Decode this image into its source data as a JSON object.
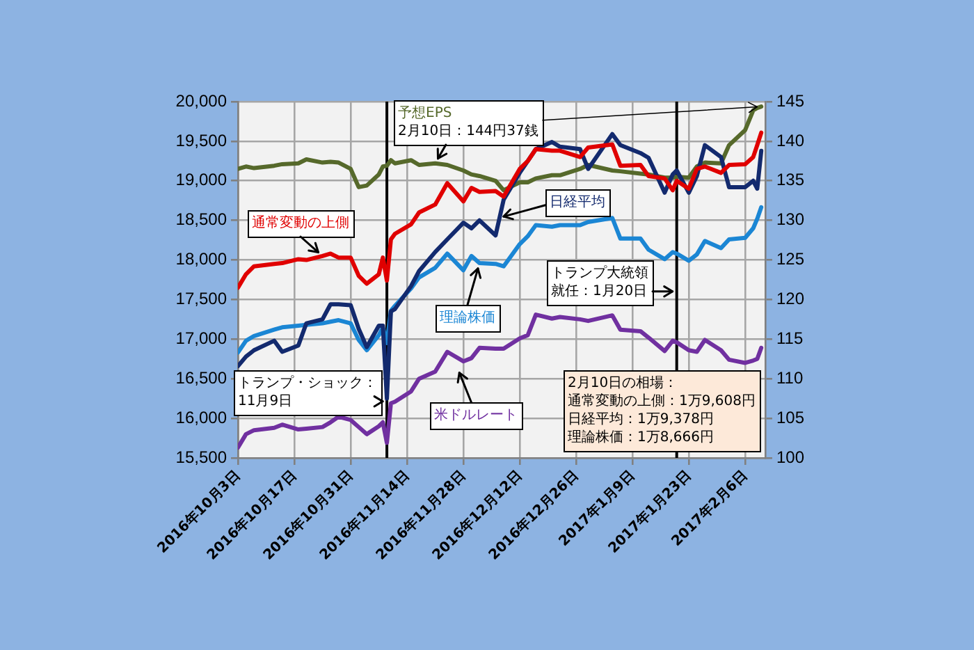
{
  "chart_data": {
    "type": "line",
    "x": [
      "2016-10-03",
      "2016-10-05",
      "2016-10-07",
      "2016-10-12",
      "2016-10-14",
      "2016-10-18",
      "2016-10-20",
      "2016-10-24",
      "2016-10-26",
      "2016-10-28",
      "2016-10-31",
      "2016-11-02",
      "2016-11-04",
      "2016-11-07",
      "2016-11-08",
      "2016-11-09",
      "2016-11-10",
      "2016-11-11",
      "2016-11-15",
      "2016-11-17",
      "2016-11-21",
      "2016-11-24",
      "2016-11-28",
      "2016-11-30",
      "2016-12-02",
      "2016-12-06",
      "2016-12-08",
      "2016-12-12",
      "2016-12-14",
      "2016-12-16",
      "2016-12-20",
      "2016-12-22",
      "2016-12-27",
      "2016-12-29",
      "2017-01-04",
      "2017-01-06",
      "2017-01-11",
      "2017-01-13",
      "2017-01-17",
      "2017-01-19",
      "2017-01-20",
      "2017-01-23",
      "2017-01-25",
      "2017-01-27",
      "2017-01-31",
      "2017-02-02",
      "2017-02-06",
      "2017-02-08",
      "2017-02-09",
      "2017-02-10"
    ],
    "series": [
      {
        "name": "通常変動の上側",
        "color": "#e00000",
        "values": [
          17650,
          17820,
          17920,
          17950,
          17960,
          18010,
          18000,
          18050,
          18080,
          18030,
          18030,
          17800,
          17700,
          17820,
          18030,
          17740,
          18260,
          18330,
          18450,
          18600,
          18700,
          18970,
          18740,
          18910,
          18860,
          18870,
          18800,
          19150,
          19250,
          19400,
          19380,
          19380,
          19300,
          19420,
          19460,
          19190,
          19200,
          19060,
          19030,
          18880,
          19000,
          18900,
          19150,
          19180,
          19100,
          19200,
          19210,
          19300,
          19450,
          19608
        ]
      },
      {
        "name": "日経平均",
        "color": "#132a6e",
        "values": [
          16660,
          16780,
          16860,
          16980,
          16840,
          16920,
          17200,
          17250,
          17440,
          17440,
          17430,
          17130,
          16900,
          17170,
          17170,
          16250,
          17350,
          17380,
          17670,
          17860,
          18100,
          18260,
          18470,
          18400,
          18500,
          18310,
          18760,
          19100,
          19250,
          19400,
          19490,
          19430,
          19400,
          19150,
          19590,
          19450,
          19350,
          19290,
          18850,
          19080,
          19130,
          18850,
          19060,
          19450,
          19300,
          18920,
          18920,
          19000,
          18900,
          19378
        ]
      },
      {
        "name": "理論株価",
        "color": "#1b86d4",
        "values": [
          16830,
          16980,
          17040,
          17120,
          17150,
          17170,
          17180,
          17200,
          17220,
          17240,
          17200,
          16990,
          16860,
          17050,
          17150,
          16950,
          17360,
          17420,
          17640,
          17780,
          17900,
          18080,
          17870,
          18050,
          17960,
          17950,
          17920,
          18200,
          18300,
          18440,
          18420,
          18440,
          18440,
          18480,
          18530,
          18270,
          18270,
          18130,
          18010,
          18100,
          18080,
          17990,
          18070,
          18240,
          18150,
          18260,
          18280,
          18400,
          18520,
          18666
        ]
      },
      {
        "name": "予想EPS",
        "color": "#56692b",
        "axis": "y2",
        "values": [
          136.5,
          136.8,
          136.6,
          136.9,
          137.1,
          137.2,
          137.7,
          137.3,
          137.4,
          137.3,
          136.5,
          134.2,
          134.4,
          135.8,
          136.8,
          136.9,
          137.6,
          137.2,
          137.6,
          137.0,
          137.2,
          137.0,
          136.3,
          135.8,
          135.6,
          135.0,
          133.8,
          134.8,
          134.8,
          135.3,
          135.7,
          135.7,
          136.5,
          137.0,
          136.3,
          136.2,
          135.9,
          135.8,
          135.4,
          135.4,
          135.5,
          135.4,
          136.8,
          137.3,
          137.2,
          139.5,
          141.4,
          143.9,
          144.2,
          144.37
        ]
      },
      {
        "name": "米ドルレート",
        "color": "#7030a0",
        "axis": "y2",
        "values": [
          101.3,
          103.0,
          103.5,
          103.8,
          104.2,
          103.6,
          103.7,
          103.9,
          104.5,
          105.2,
          104.8,
          103.9,
          103.0,
          104.0,
          104.5,
          101.9,
          106.9,
          107.1,
          108.4,
          110.0,
          110.9,
          113.4,
          112.2,
          112.6,
          113.9,
          113.8,
          113.8,
          115.1,
          115.5,
          118.1,
          117.6,
          117.8,
          117.5,
          117.3,
          118.0,
          116.2,
          116.0,
          115.2,
          113.5,
          114.8,
          114.6,
          113.6,
          113.4,
          114.9,
          113.6,
          112.4,
          112.0,
          112.3,
          112.5,
          113.9
        ]
      }
    ],
    "xlim": [
      "2016-10-03",
      "2017-02-11"
    ],
    "xticks": [
      {
        "value": "2016-10-03",
        "label": "2016年10月3日"
      },
      {
        "value": "2016-10-17",
        "label": "2016年10月17日"
      },
      {
        "value": "2016-10-31",
        "label": "2016年10月31日"
      },
      {
        "value": "2016-11-14",
        "label": "2016年11月14日"
      },
      {
        "value": "2016-11-28",
        "label": "2016年11月28日"
      },
      {
        "value": "2016-12-12",
        "label": "2016年12月12日"
      },
      {
        "value": "2016-12-26",
        "label": "2016年12月26日"
      },
      {
        "value": "2017-01-09",
        "label": "2017年1月9日"
      },
      {
        "value": "2017-01-23",
        "label": "2017年1月23日"
      },
      {
        "value": "2017-02-06",
        "label": "2017年2月6日"
      }
    ],
    "ylim": [
      15500,
      20000
    ],
    "yticks": [
      {
        "value": 15500,
        "label": "15,500"
      },
      {
        "value": 16000,
        "label": "16,000"
      },
      {
        "value": 16500,
        "label": "16,500"
      },
      {
        "value": 17000,
        "label": "17,000"
      },
      {
        "value": 17500,
        "label": "17,500"
      },
      {
        "value": 18000,
        "label": "18,000"
      },
      {
        "value": 18500,
        "label": "18,500"
      },
      {
        "value": 19000,
        "label": "19,000"
      },
      {
        "value": 19500,
        "label": "19,500"
      },
      {
        "value": 20000,
        "label": "20,000"
      }
    ],
    "y2lim": [
      100,
      145
    ],
    "y2ticks": [
      100,
      105,
      110,
      115,
      120,
      125,
      130,
      135,
      140,
      145
    ],
    "grid": true,
    "ref_lines": [
      {
        "axis": "x",
        "value": "2016-11-09",
        "label": "トランプ・ショック：11月9日",
        "color": "#000000"
      },
      {
        "axis": "x",
        "value": "2017-01-20",
        "label": "トランプ大統領就任：1月20日",
        "color": "#000000"
      }
    ],
    "annotations": [
      "2月10日：144円37銭",
      "2月10日の相場：",
      "通常変動の上側：1万9,608円",
      "日経平均：1万9,378円",
      "理論株価：1万8,666円"
    ]
  }
}
